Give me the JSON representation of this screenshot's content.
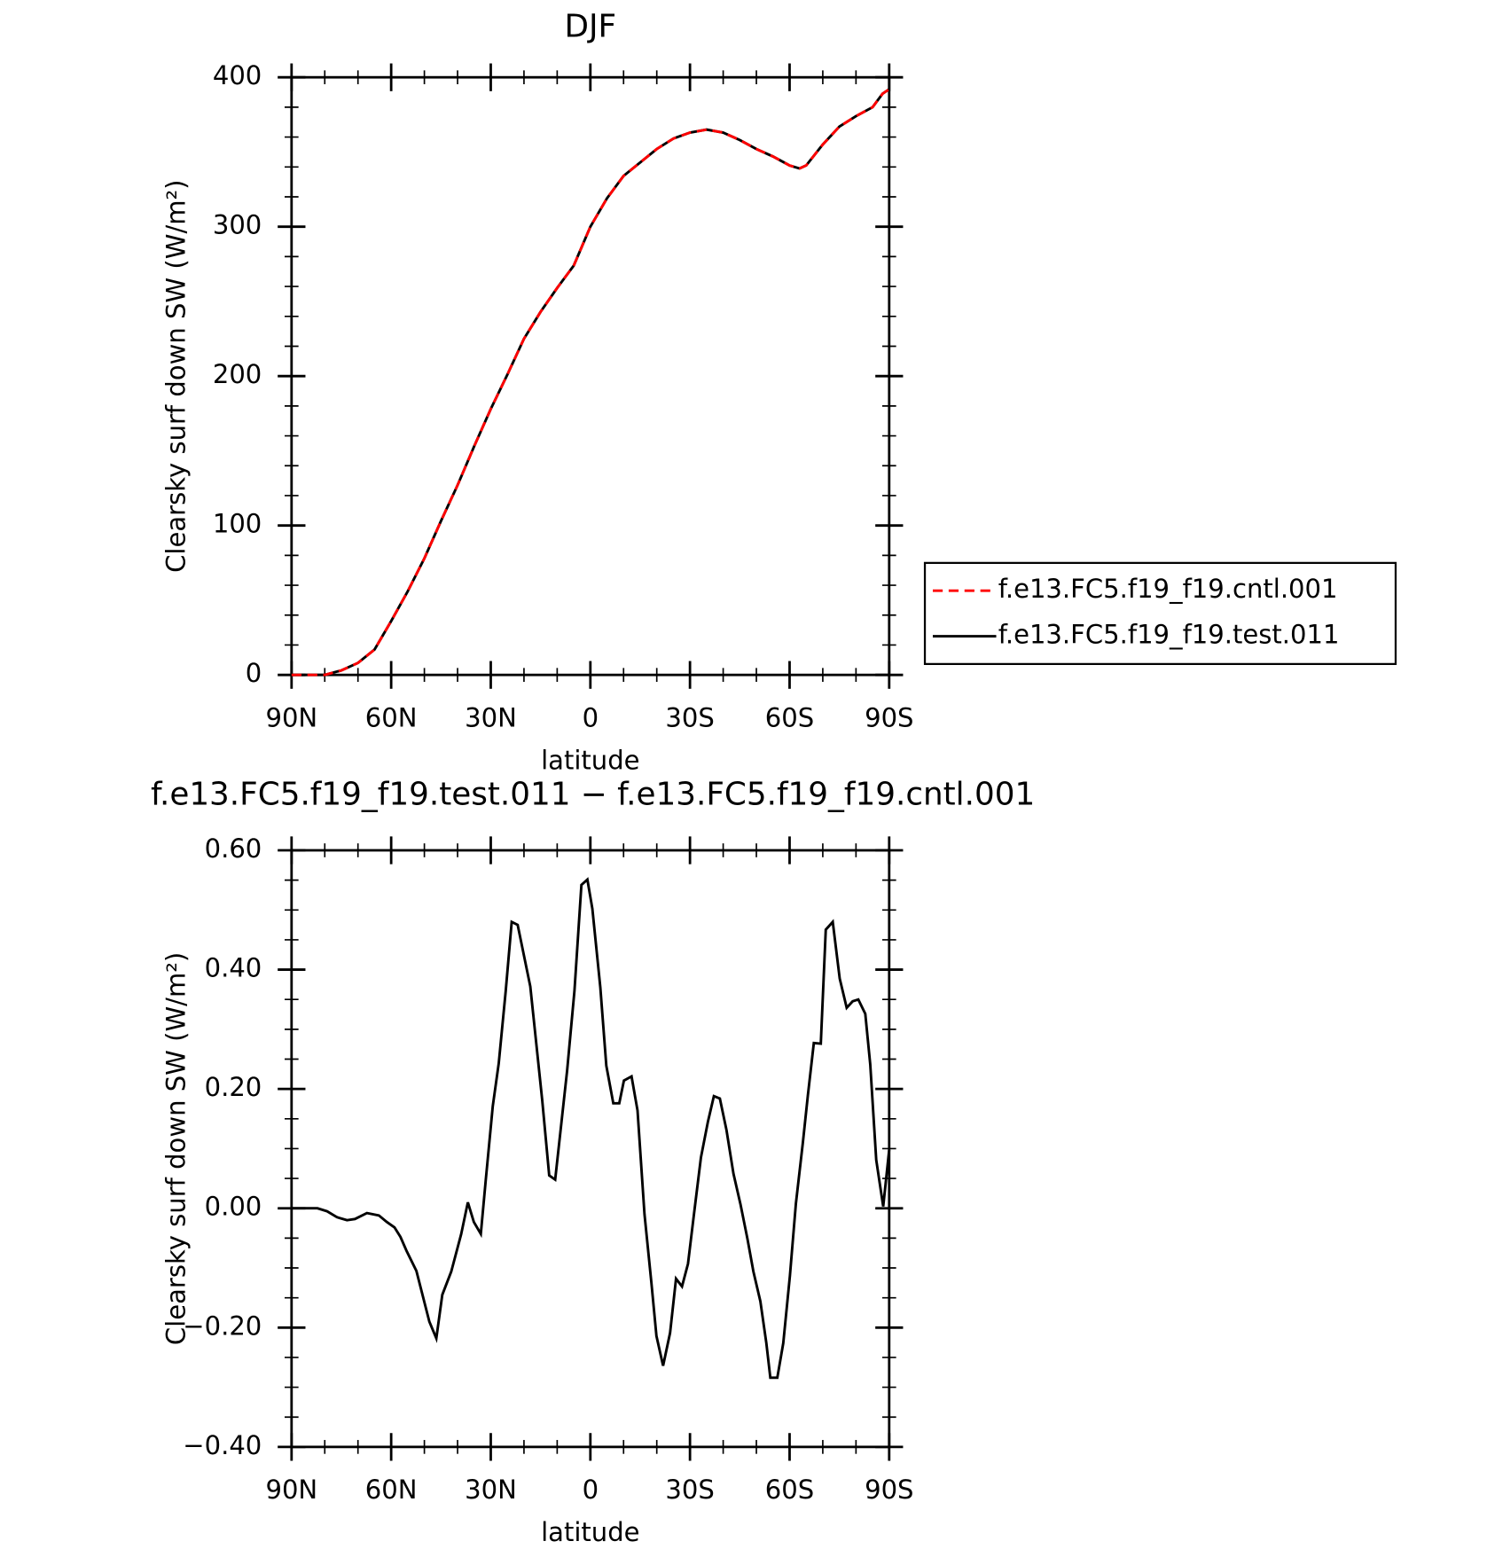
{
  "chart_data": [
    {
      "type": "line",
      "title": "DJF",
      "xlabel": "latitude",
      "ylabel": "Clearsky surf down SW (W/m²)",
      "xlim": [
        90,
        -90
      ],
      "xticks": [
        {
          "value": 90,
          "label": "90N"
        },
        {
          "value": 60,
          "label": "60N"
        },
        {
          "value": 30,
          "label": "30N"
        },
        0,
        {
          "value": -30,
          "label": "30S"
        },
        {
          "value": -60,
          "label": "60S"
        },
        {
          "value": -90,
          "label": "90S"
        }
      ],
      "ylim": [
        0,
        400
      ],
      "yticks": [
        0,
        100,
        200,
        300,
        400
      ],
      "x": [
        90,
        80,
        75,
        70,
        65,
        60,
        55,
        50,
        45,
        40,
        35,
        30,
        25,
        20,
        15,
        10,
        5,
        0,
        -5,
        -10,
        -15,
        -20,
        -25,
        -30,
        -35,
        -40,
        -45,
        -50,
        -55,
        -60,
        -63,
        -65,
        -70,
        -75,
        -80,
        -85,
        -88,
        -90
      ],
      "legend": "right",
      "series": [
        {
          "name": "f.e13.FC5.f19_f19.cntl.001",
          "color": "#ff0000",
          "linestyle": "dashed",
          "values": [
            0,
            0,
            3,
            8,
            17,
            36,
            56,
            78,
            103,
            127,
            153,
            178,
            201,
            225,
            243,
            259,
            274,
            300,
            319,
            334,
            343,
            352,
            359,
            363,
            365,
            363,
            358,
            352,
            347,
            341,
            339,
            341,
            355,
            367,
            374,
            380,
            389,
            392
          ]
        },
        {
          "name": "f.e13.FC5.f19_f19.test.011",
          "color": "#000000",
          "linestyle": "solid",
          "values": [
            0,
            0,
            3,
            8,
            17,
            36,
            56,
            78,
            103,
            127,
            153,
            178,
            201,
            225,
            243,
            259,
            274,
            300,
            319,
            334,
            343,
            352,
            359,
            363,
            365,
            363,
            358,
            352,
            347,
            341,
            339,
            341,
            355,
            367,
            374,
            380,
            389,
            392
          ]
        }
      ]
    },
    {
      "type": "line",
      "title": "f.e13.FC5.f19_f19.test.011 − f.e13.FC5.f19_f19.cntl.001",
      "xlabel": "latitude",
      "ylabel": "Clearsky surf down SW (W/m²)",
      "xlim": [
        90,
        -90
      ],
      "xticks": [
        {
          "value": 90,
          "label": "90N"
        },
        {
          "value": 60,
          "label": "60N"
        },
        {
          "value": 30,
          "label": "30N"
        },
        0,
        {
          "value": -30,
          "label": "30S"
        },
        {
          "value": -60,
          "label": "60S"
        },
        {
          "value": -90,
          "label": "90S"
        }
      ],
      "ylim": [
        -0.4,
        0.6
      ],
      "yticks": [
        {
          "value": -0.4,
          "label": "−0.40"
        },
        {
          "value": -0.2,
          "label": "−0.20"
        },
        {
          "value": 0,
          "label": "0.00"
        },
        {
          "value": 0.2,
          "label": "0.20"
        },
        {
          "value": 0.4,
          "label": "0.40"
        },
        {
          "value": 0.6,
          "label": "0.60"
        }
      ],
      "x": [
        90,
        82.2,
        79.3,
        76.3,
        73.3,
        70.9,
        67.3,
        63.7,
        61.3,
        59.0,
        57.2,
        55.4,
        52.4,
        48.5,
        46.4,
        44.6,
        41.9,
        38.9,
        36.9,
        35.1,
        33.0,
        31.5,
        29.4,
        27.6,
        25.5,
        23.7,
        21.9,
        18.1,
        14.5,
        12.4,
        10.6,
        7.0,
        4.8,
        2.7,
        0.9,
        -0.6,
        -3.0,
        -4.8,
        -6.9,
        -8.7,
        -10.1,
        -12.4,
        -14.2,
        -16.3,
        -18.4,
        -19.9,
        -21.9,
        -24.0,
        -25.8,
        -27.6,
        -29.4,
        -31.2,
        -33.3,
        -35.4,
        -37.2,
        -39.0,
        -41.0,
        -43.1,
        -45.2,
        -47.3,
        -49.1,
        -51.2,
        -53.0,
        -54.2,
        -56.3,
        -58.1,
        -60.1,
        -61.9,
        -64.0,
        -65.5,
        -67.3,
        -69.4,
        -70.9,
        -73.0,
        -75.1,
        -77.2,
        -79.0,
        -80.7,
        -82.8,
        -84.3,
        -86.1,
        -88.2,
        -90
      ],
      "series": [
        {
          "color": "#000000",
          "linestyle": "solid",
          "values": [
            0,
            0,
            -0.005,
            -0.015,
            -0.02,
            -0.018,
            -0.008,
            -0.012,
            -0.023,
            -0.032,
            -0.048,
            -0.071,
            -0.105,
            -0.19,
            -0.218,
            -0.145,
            -0.106,
            -0.043,
            0.01,
            -0.023,
            -0.043,
            0.048,
            0.171,
            0.243,
            0.364,
            0.48,
            0.475,
            0.372,
            0.181,
            0.055,
            0.048,
            0.231,
            0.364,
            0.542,
            0.551,
            0.502,
            0.37,
            0.239,
            0.176,
            0.176,
            0.214,
            0.221,
            0.164,
            -0.01,
            -0.126,
            -0.214,
            -0.264,
            -0.209,
            -0.118,
            -0.131,
            -0.093,
            -0.01,
            0.085,
            0.145,
            0.188,
            0.184,
            0.131,
            0.058,
            0.007,
            -0.051,
            -0.106,
            -0.156,
            -0.226,
            -0.284,
            -0.284,
            -0.226,
            -0.113,
            0.008,
            0.11,
            0.189,
            0.277,
            0.276,
            0.467,
            0.48,
            0.385,
            0.336,
            0.347,
            0.35,
            0.326,
            0.241,
            0.081,
            0.003,
            0.098
          ]
        }
      ]
    }
  ]
}
